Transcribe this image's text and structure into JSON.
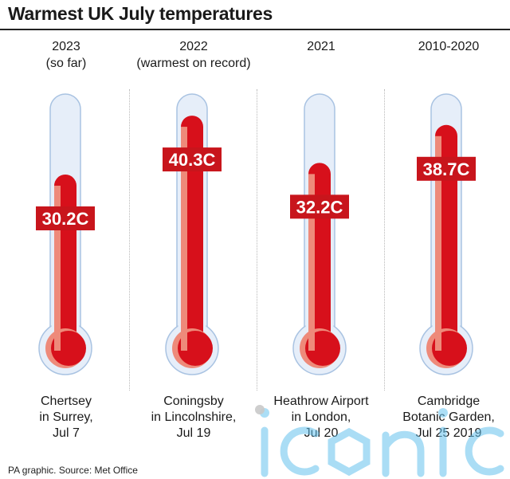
{
  "title": "Warmest UK July temperatures",
  "source": "PA graphic. Source: Met Office",
  "watermark": "iconic",
  "colors": {
    "mercury": "#d7101b",
    "mercury_shade": "#ee8a7a",
    "tube": "#e6eef9",
    "tube_outline": "#a9c3e2",
    "label_bg": "#c8151c",
    "watermark": "#66c3ee"
  },
  "chart_data": {
    "type": "bar",
    "title": "Warmest UK July temperatures",
    "unit": "C",
    "ylim": [
      0,
      44
    ],
    "categories": [
      "2023",
      "2022",
      "2021",
      "2010-2020"
    ],
    "values": [
      30.2,
      40.3,
      32.2,
      38.7
    ],
    "columns": [
      {
        "heading": [
          "2023",
          "(so far)"
        ],
        "value": 30.2,
        "label": "30.2C",
        "location": [
          "Chertsey",
          "in Surrey,",
          "Jul 7"
        ]
      },
      {
        "heading": [
          "2022",
          "(warmest on record)"
        ],
        "value": 40.3,
        "label": "40.3C",
        "location": [
          "Coningsby",
          "in Lincolnshire,",
          "Jul 19"
        ]
      },
      {
        "heading": [
          "2021"
        ],
        "value": 32.2,
        "label": "32.2C",
        "location": [
          "Heathrow Airport",
          "in London,",
          "Jul 20"
        ]
      },
      {
        "heading": [
          "2010-2020"
        ],
        "value": 38.7,
        "label": "38.7C",
        "location": [
          "Cambridge",
          "Botanic Garden,",
          "Jul 25 2019"
        ]
      }
    ]
  }
}
